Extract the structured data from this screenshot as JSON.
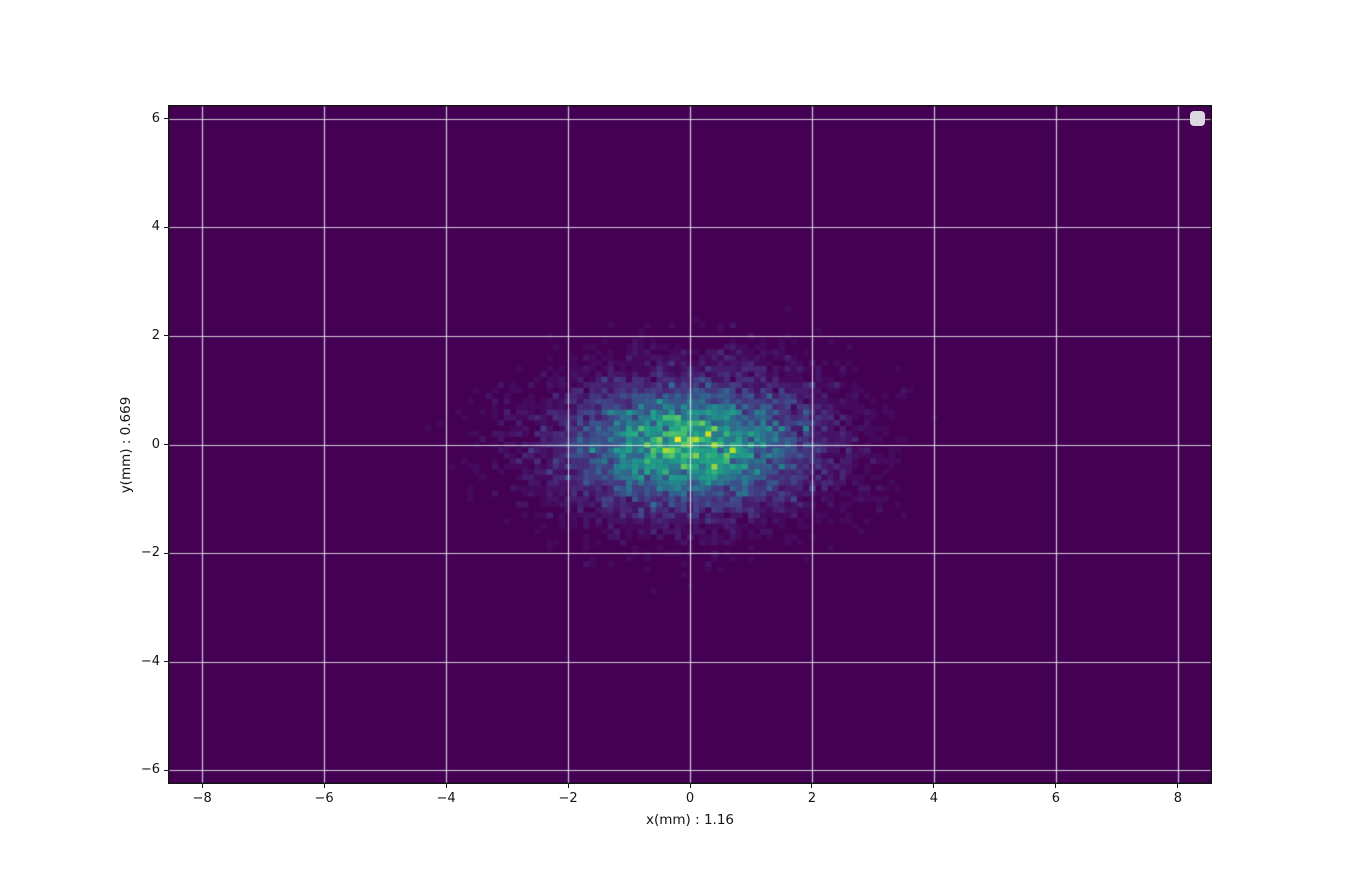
{
  "figure": {
    "background_color": "#ffffff"
  },
  "chart_data": {
    "type": "heatmap",
    "variant": "hist2d",
    "description": "2D histogram of transverse particle-beam profile, gaussian spot centered at origin",
    "title": "",
    "xlabel": "x(mm) : 1.16",
    "ylabel": "y(mm) : 0.669",
    "x_rms_mm": 1.16,
    "y_rms_mm": 0.669,
    "beam_center": [
      0,
      0
    ],
    "xlim": [
      -8.56,
      8.56
    ],
    "ylim": [
      -6.25,
      6.25
    ],
    "x_ticks": [
      -8,
      -6,
      -4,
      -2,
      0,
      2,
      4,
      6,
      8
    ],
    "x_tick_labels": [
      "−8",
      "−6",
      "−4",
      "−2",
      "0",
      "2",
      "4",
      "6",
      "8"
    ],
    "y_ticks": [
      -6,
      -4,
      -2,
      0,
      2,
      4,
      6
    ],
    "y_tick_labels": [
      "−6",
      "−4",
      "−2",
      "0",
      "2",
      "4",
      "6"
    ],
    "grid": true,
    "grid_color": "rgba(228,224,230,0.9)",
    "spine_color": "#141414",
    "tick_color": "#141414",
    "plot_bg_color": "#440154",
    "colormap": {
      "name": "viridis",
      "stops": [
        "#440154",
        "#482475",
        "#414487",
        "#355f8d",
        "#2a788e",
        "#21918c",
        "#22a884",
        "#44bf70",
        "#7ad151",
        "#bddf26",
        "#fde725"
      ]
    },
    "histogram": {
      "distribution": "gaussian",
      "sigma_x_mm": 1.16,
      "sigma_y_mm": 0.669,
      "mean_x_mm": 0,
      "mean_y_mm": 0,
      "bin_size_mm": 0.1,
      "n_samples": 12000,
      "seed": 1234
    },
    "corner_marker": {
      "shape": "rounded-square",
      "color": "#dcd8e2",
      "data_x": 8.33,
      "data_y": 6.0
    }
  }
}
